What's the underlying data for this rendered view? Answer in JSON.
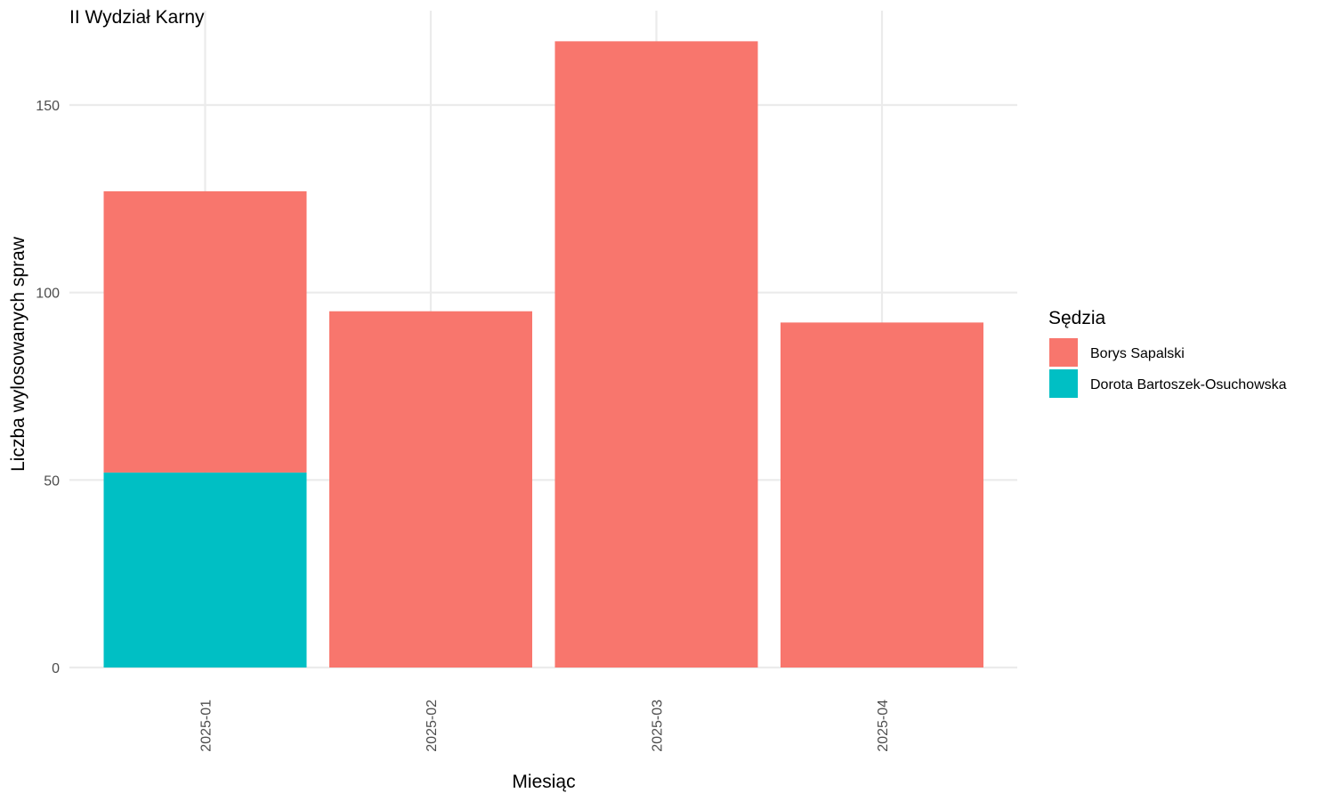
{
  "chart_data": {
    "type": "bar",
    "stacked": true,
    "title": "II Wydział Karny",
    "xlabel": "Miesiąc",
    "ylabel": "Liczba wylosowanych spraw",
    "categories": [
      "2025-01",
      "2025-02",
      "2025-03",
      "2025-04"
    ],
    "series": [
      {
        "name": "Borys Sapalski",
        "color": "#F8766D",
        "values": [
          75,
          95,
          167,
          92
        ]
      },
      {
        "name": "Dorota Bartoszek-Osuchowska",
        "color": "#00BFC4",
        "values": [
          52,
          0,
          0,
          0
        ]
      }
    ],
    "stack_order_bottom_to_top": [
      "Dorota Bartoszek-Osuchowska",
      "Borys Sapalski"
    ],
    "ylim": [
      0,
      175
    ],
    "yticks": [
      0,
      50,
      100,
      150
    ],
    "grid": true,
    "legend": {
      "title": "Sędzia",
      "placement": "right"
    }
  }
}
